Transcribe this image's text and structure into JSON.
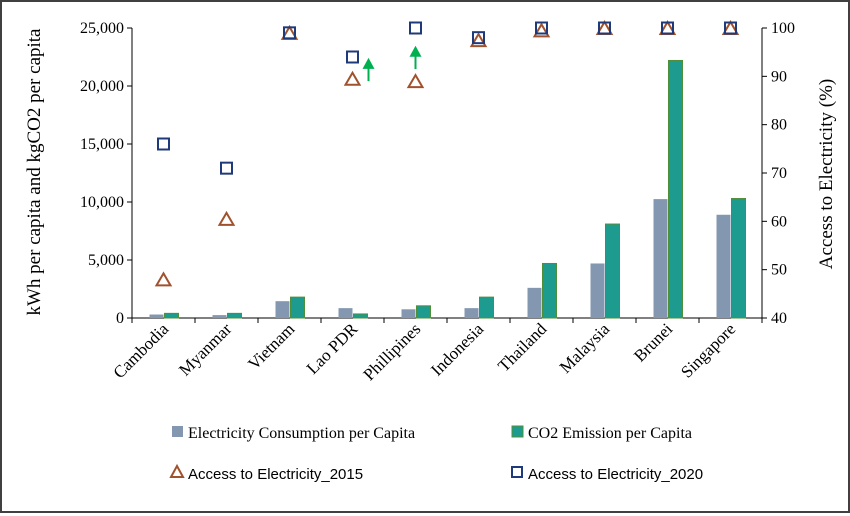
{
  "chart_data": {
    "type": "bar",
    "categories": [
      "Cambodia",
      "Myanmar",
      "Vietnam",
      "Lao PDR",
      "Phillipines",
      "Indonesia",
      "Thailand",
      "Malaysia",
      "Brunei",
      "Singapore"
    ],
    "ylabel": "kWh per capita and kgCO2 per capita",
    "y2label": "Access to Electricity (%)",
    "ylim": [
      0,
      25000
    ],
    "y2lim": [
      40,
      100
    ],
    "yticks": [
      "0",
      "5,000",
      "10,000",
      "15,000",
      "20,000",
      "25,000"
    ],
    "y2ticks": [
      "40",
      "50",
      "60",
      "70",
      "80",
      "90",
      "100"
    ],
    "series": [
      {
        "name": "Electricity Consumption per Capita",
        "type": "bar",
        "axis": "left",
        "color": "#8497b0",
        "values": [
          300,
          250,
          1450,
          850,
          750,
          850,
          2600,
          4700,
          10250,
          8900
        ]
      },
      {
        "name": "CO2 Emission per Capita",
        "type": "bar",
        "axis": "left",
        "color": "#1e9b8f",
        "values": [
          400,
          400,
          1800,
          350,
          1050,
          1800,
          4700,
          8100,
          22200,
          10300
        ]
      },
      {
        "name": "Access to Electricity_2015",
        "type": "scatter",
        "marker": "triangle",
        "axis": "right",
        "color": "#a0522d",
        "values": [
          48,
          60.5,
          99,
          89.5,
          89,
          97.5,
          99.5,
          100,
          100,
          100
        ]
      },
      {
        "name": "Access to Electricity_2020",
        "type": "scatter",
        "marker": "square",
        "axis": "right",
        "color": "#1f3a7a",
        "values": [
          76,
          71,
          99,
          94,
          100,
          98,
          100,
          100,
          100,
          100
        ]
      }
    ],
    "arrows": [
      {
        "category": "Lao PDR",
        "from": 89,
        "to": 93,
        "color": "#00b050"
      },
      {
        "category": "Phillipines",
        "from": 91.5,
        "to": 95.5,
        "color": "#00b050"
      }
    ],
    "legend_position": "bottom",
    "grid": false
  }
}
